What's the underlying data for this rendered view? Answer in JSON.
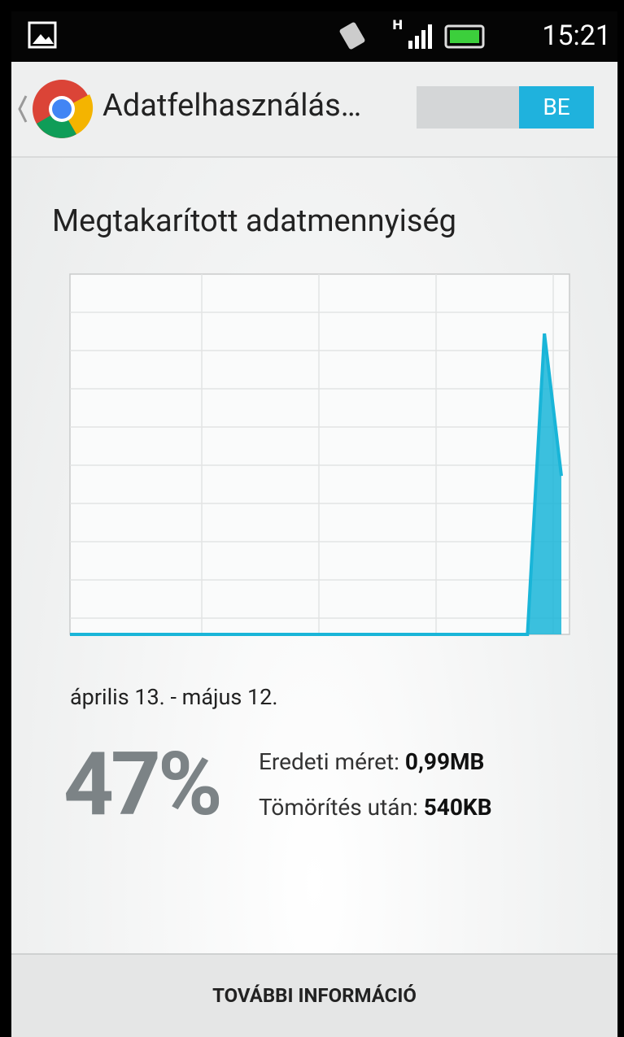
{
  "status_bar": {
    "time": "15:21"
  },
  "app_bar": {
    "title": "Adatfelhasználás…",
    "toggle": "BE"
  },
  "heading": "Megtakarított adatmennyiség",
  "chart": {
    "values": [
      0,
      0,
      0,
      0,
      0,
      0,
      0,
      0,
      0,
      0,
      0,
      0,
      0,
      0,
      0,
      0,
      0,
      0,
      0,
      0,
      0,
      0,
      0,
      0,
      0,
      0,
      0,
      0,
      0.835,
      0.44
    ],
    "color": "#19b5d8"
  },
  "date_range": "április 13. - május 12.",
  "percent": "47%",
  "stats": [
    {
      "label": "Eredeti méret:",
      "value": "0,99MB"
    },
    {
      "label": "Tömörítés után:",
      "value": "540KB"
    }
  ],
  "footer_button": "TOVÁBBI INFORMÁCIÓ"
}
